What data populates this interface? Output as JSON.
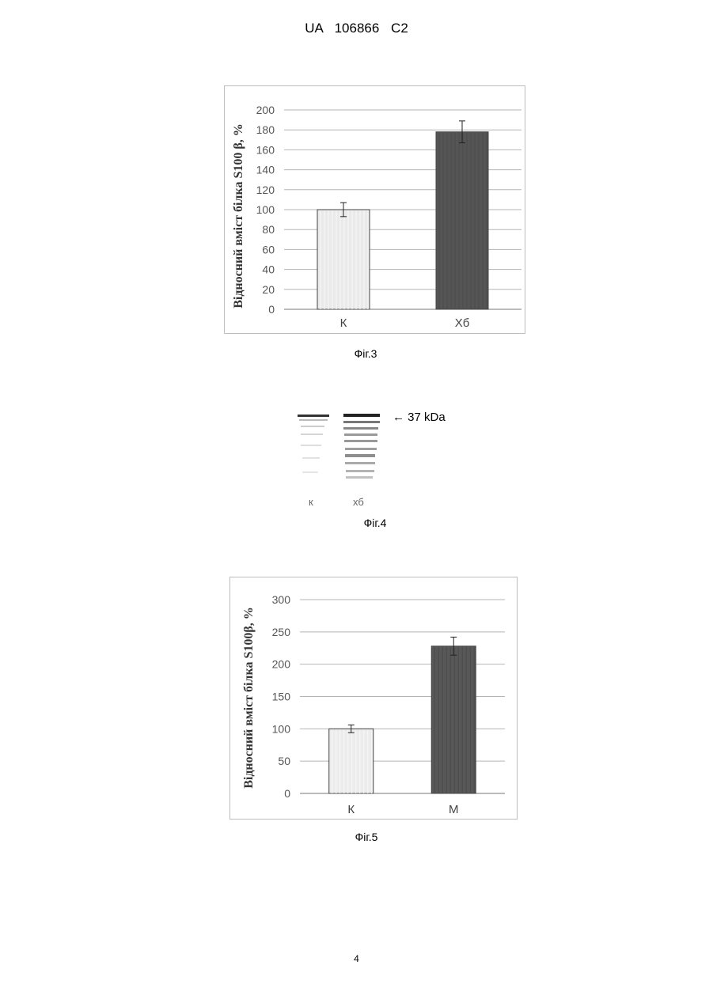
{
  "header": {
    "text": "UA   106866   C2"
  },
  "figures": {
    "fig3": {
      "caption": "Фіг.3",
      "chart_data": {
        "type": "bar",
        "categories": [
          "К",
          "Хб"
        ],
        "values": [
          100,
          178
        ],
        "errors": [
          7,
          11
        ],
        "ylabel": "Відносний вміст білка S100 β, %",
        "xlabel": "",
        "ylim": [
          0,
          200
        ],
        "yticks": [
          0,
          20,
          40,
          60,
          80,
          100,
          120,
          140,
          160,
          180,
          200
        ],
        "grid": true,
        "bar_colors": [
          "#eaeaea",
          "#555555"
        ]
      }
    },
    "fig4": {
      "caption": "Фіг.4",
      "marker_label": "← 37 kDa",
      "lane_labels": [
        "к",
        "хб"
      ]
    },
    "fig5": {
      "caption": "Фіг.5",
      "chart_data": {
        "type": "bar",
        "categories": [
          "К",
          "М"
        ],
        "values": [
          100,
          228
        ],
        "errors": [
          6,
          14
        ],
        "ylabel": "Відносний вміст білка S100β, %",
        "xlabel": "",
        "ylim": [
          0,
          300
        ],
        "yticks": [
          0,
          50,
          100,
          150,
          200,
          250,
          300
        ],
        "grid": true,
        "bar_colors": [
          "#ececec",
          "#585858"
        ]
      }
    }
  },
  "page_number": "4"
}
